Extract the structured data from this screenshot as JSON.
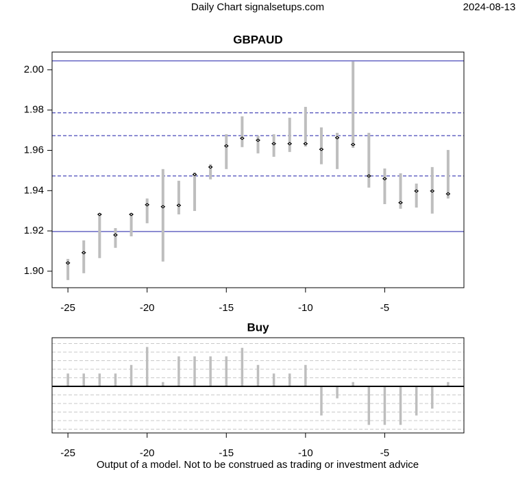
{
  "header": {
    "source": "Daily Chart signalsetups.com",
    "date": "2024-08-13"
  },
  "footer": "Output of a model. Not to be construed as trading or investment advice",
  "chart_data": [
    {
      "type": "range",
      "title": "GBPAUD",
      "x": [
        -25,
        -24,
        -23,
        -22,
        -21,
        -20,
        -19,
        -18,
        -17,
        -16,
        -15,
        -14,
        -13,
        -12,
        -11,
        -10,
        -9,
        -8,
        -7,
        -6,
        -5,
        -4,
        -3,
        -2,
        -1
      ],
      "high": [
        1.9061,
        1.9153,
        1.9289,
        1.9214,
        1.9289,
        1.9361,
        1.9507,
        1.9449,
        1.949,
        1.9531,
        1.968,
        1.9769,
        1.9673,
        1.968,
        1.9762,
        1.9816,
        1.9714,
        1.9687,
        2.0041,
        1.9687,
        1.951,
        1.9486,
        1.9435,
        1.9517,
        1.9602
      ],
      "low": [
        1.8956,
        1.899,
        1.9065,
        1.9116,
        1.9173,
        1.9238,
        1.9048,
        1.9282,
        1.9299,
        1.9456,
        1.9507,
        1.9616,
        1.9585,
        1.9568,
        1.9592,
        1.9619,
        1.9531,
        1.9507,
        1.9612,
        1.9415,
        1.9333,
        1.931,
        1.9316,
        1.9286,
        1.9361
      ],
      "close": [
        1.9041,
        1.9092,
        1.9282,
        1.918,
        1.9282,
        1.933,
        1.932,
        1.9327,
        1.948,
        1.9517,
        1.9622,
        1.966,
        1.965,
        1.9633,
        1.9633,
        1.9633,
        1.9605,
        1.9663,
        1.9629,
        1.9473,
        1.9459,
        1.934,
        1.9398,
        1.9398,
        1.9384
      ],
      "color": "#bebebe",
      "hlines": [
        {
          "value": 2.0044,
          "style": "solid"
        },
        {
          "value": 1.9786,
          "style": "dashed"
        },
        {
          "value": 1.9673,
          "style": "dashed"
        },
        {
          "value": 1.9473,
          "style": "dashed"
        },
        {
          "value": 1.9197,
          "style": "solid"
        }
      ],
      "hline_color": "#1a1aa6",
      "xlim": [
        -26,
        0
      ],
      "xticks": [
        -25,
        -20,
        -15,
        -10,
        -5
      ],
      "ylim": [
        1.8918,
        2.0088
      ],
      "yticks": [
        {
          "value": 1.9,
          "label": "1.90"
        },
        1.92,
        1.94,
        1.96,
        1.98,
        {
          "value": 2,
          "label": "2.00"
        }
      ]
    },
    {
      "type": "bar",
      "title": "Buy",
      "x": [
        -25,
        -24,
        -23,
        -22,
        -21,
        -20,
        -19,
        -18,
        -17,
        -16,
        -15,
        -14,
        -13,
        -12,
        -11,
        -10,
        -9,
        -8,
        -7,
        -6,
        -5,
        -4,
        -3,
        -2,
        -1
      ],
      "values": [
        1.5,
        1.5,
        1.5,
        1.5,
        2.5,
        4.6,
        0.5,
        3.5,
        3.5,
        3.5,
        3.5,
        4.5,
        2.5,
        1.5,
        1.5,
        2.5,
        -3.4,
        -1.4,
        0.5,
        -4.5,
        -4.5,
        -4.5,
        -3.4,
        -2.6,
        0.5
      ],
      "color": "#bebebe",
      "xlim": [
        -26,
        0
      ],
      "xticks": [
        -25,
        -20,
        -15,
        -10,
        -5
      ],
      "ylim": [
        -5.44,
        5.68
      ],
      "grid_lines": [
        -5,
        -4,
        -3,
        -2,
        -1,
        1,
        2,
        3,
        4,
        5
      ]
    }
  ]
}
